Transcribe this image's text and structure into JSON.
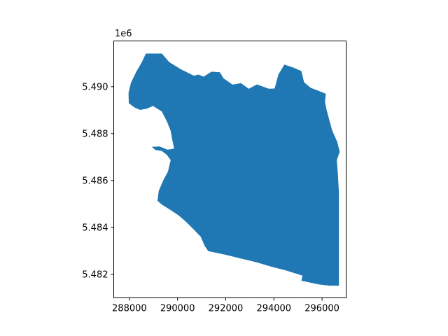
{
  "chart_data": {
    "type": "map",
    "title": "",
    "xlabel": "",
    "ylabel": "",
    "x_ticks": [
      288000,
      290000,
      292000,
      294000,
      296000
    ],
    "x_tick_labels": [
      "288000",
      "290000",
      "292000",
      "294000",
      "296000"
    ],
    "y_ticks": [
      5482000,
      5484000,
      5486000,
      5488000,
      5490000
    ],
    "y_tick_labels": [
      "5.482",
      "5.484",
      "5.486",
      "5.488",
      "5.490"
    ],
    "y_offset_label": "1e6",
    "xlim": [
      287350,
      297000
    ],
    "ylim": [
      5481000,
      5491950
    ],
    "grid": false,
    "fill_color": "#1f77b4",
    "series": [
      {
        "type": "polygon",
        "coordinates": [
          [
            288683,
            5491413
          ],
          [
            289347,
            5491413
          ],
          [
            289656,
            5491047
          ],
          [
            290138,
            5490741
          ],
          [
            290683,
            5490464
          ],
          [
            290862,
            5490519
          ],
          [
            291082,
            5490427
          ],
          [
            291411,
            5490640
          ],
          [
            291758,
            5490612
          ],
          [
            291908,
            5490356
          ],
          [
            292284,
            5490087
          ],
          [
            292632,
            5490153
          ],
          [
            292956,
            5489908
          ],
          [
            293294,
            5490097
          ],
          [
            293787,
            5489914
          ],
          [
            294029,
            5489920
          ],
          [
            294187,
            5490519
          ],
          [
            294432,
            5490945
          ],
          [
            294789,
            5490826
          ],
          [
            295140,
            5490667
          ],
          [
            295253,
            5490190
          ],
          [
            295529,
            5489952
          ],
          [
            295848,
            5489828
          ],
          [
            296158,
            5489697
          ],
          [
            296118,
            5489353
          ],
          [
            296179,
            5489047
          ],
          [
            296291,
            5488616
          ],
          [
            296423,
            5488130
          ],
          [
            296628,
            5487654
          ],
          [
            296734,
            5487234
          ],
          [
            296610,
            5486860
          ],
          [
            296651,
            5486380
          ],
          [
            296701,
            5485460
          ],
          [
            296701,
            5481518
          ],
          [
            296315,
            5481518
          ],
          [
            295848,
            5481577
          ],
          [
            295141,
            5481730
          ],
          [
            295186,
            5481946
          ],
          [
            294468,
            5482178
          ],
          [
            293894,
            5482327
          ],
          [
            293301,
            5482510
          ],
          [
            292680,
            5482662
          ],
          [
            292000,
            5482834
          ],
          [
            291273,
            5482992
          ],
          [
            291126,
            5483215
          ],
          [
            290960,
            5483609
          ],
          [
            290661,
            5483923
          ],
          [
            290348,
            5484244
          ],
          [
            290043,
            5484512
          ],
          [
            289720,
            5484735
          ],
          [
            289346,
            5484974
          ],
          [
            289168,
            5485136
          ],
          [
            289218,
            5485560
          ],
          [
            289394,
            5485983
          ],
          [
            289601,
            5486380
          ],
          [
            289714,
            5486872
          ],
          [
            289558,
            5487091
          ],
          [
            289340,
            5487263
          ],
          [
            289077,
            5487305
          ],
          [
            288930,
            5487436
          ],
          [
            289257,
            5487450
          ],
          [
            289587,
            5487314
          ],
          [
            289857,
            5487362
          ],
          [
            289778,
            5487748
          ],
          [
            289711,
            5488128
          ],
          [
            289561,
            5488506
          ],
          [
            289345,
            5488944
          ],
          [
            288977,
            5489178
          ],
          [
            288716,
            5489058
          ],
          [
            288442,
            5489011
          ],
          [
            288202,
            5489120
          ],
          [
            287974,
            5489299
          ],
          [
            287964,
            5489734
          ],
          [
            288066,
            5490172
          ],
          [
            288288,
            5490640
          ],
          [
            288517,
            5491047
          ],
          [
            288683,
            5491413
          ]
        ]
      }
    ]
  }
}
